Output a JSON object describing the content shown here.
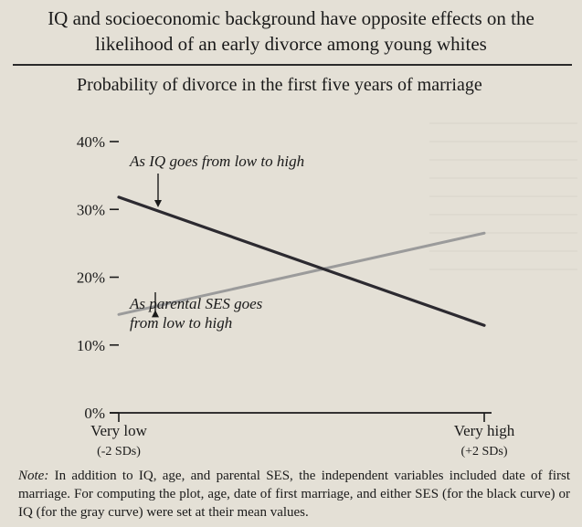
{
  "figure": {
    "title_line1": "IQ and socioeconomic background have opposite effects on the",
    "title_line2": "likelihood of an early divorce among young whites",
    "note_label": "Note:",
    "note_text": " In addition to IQ, age, and parental SES, the independent variables included date of first marriage. For computing the plot, age, date of first marriage, and either SES (for the black curve) or IQ (for the gray curve) were set at their mean values."
  },
  "chart_data": {
    "type": "line",
    "title": "Probability of divorce in the first five years of marriage",
    "x_tick_labels": [
      {
        "value": -2,
        "line1": "Very low",
        "line2": "(-2 SDs)"
      },
      {
        "value": 2,
        "line1": "Very high",
        "line2": "(+2 SDs)"
      }
    ],
    "xlim": [
      -2,
      2
    ],
    "ylim": [
      0,
      40
    ],
    "y_ticks": [
      0,
      10,
      20,
      30,
      40
    ],
    "y_tick_labels": [
      "0%",
      "10%",
      "20%",
      "30%",
      "40%"
    ],
    "grid": false,
    "series": [
      {
        "name": "As IQ goes from low to high",
        "color": "#2c2a30",
        "x": [
          -2,
          2
        ],
        "y": [
          31.8,
          12.9
        ]
      },
      {
        "name": "As parental SES goes from low to high",
        "color": "#9b9b9b",
        "x": [
          -2,
          2
        ],
        "y": [
          14.5,
          26.5
        ]
      }
    ],
    "annotations": [
      {
        "target_series": 0,
        "line1": "As IQ goes from low to high",
        "line2": ""
      },
      {
        "target_series": 1,
        "line1": "As parental SES goes",
        "line2": "from low to high"
      }
    ]
  }
}
